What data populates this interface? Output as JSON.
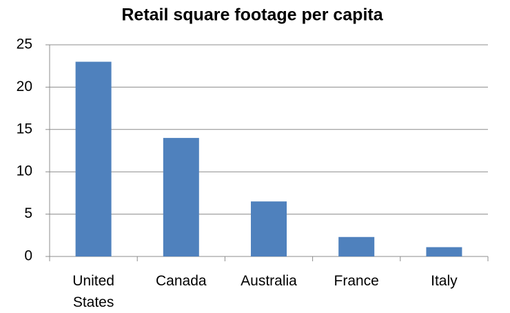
{
  "chart_data": {
    "type": "bar",
    "title": "Retail square footage per capita",
    "categories": [
      "United States",
      "Canada",
      "Australia",
      "France",
      "Italy"
    ],
    "values": [
      23,
      14,
      6.5,
      2.3,
      1.1
    ],
    "color": "#4f81bd",
    "ylim": [
      0,
      25
    ],
    "yticks": [
      0,
      5,
      10,
      15,
      20,
      25
    ],
    "grid": true
  }
}
